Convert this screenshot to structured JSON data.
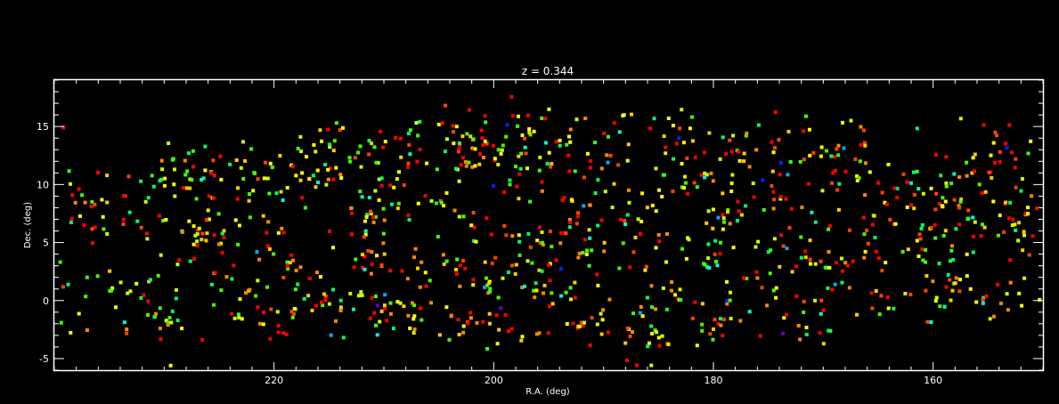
{
  "chart_data": {
    "type": "scatter",
    "title": "z = 0.344",
    "xlabel": "R.A. (deg)",
    "ylabel": "Dec. (deg)",
    "xlim": [
      240,
      150
    ],
    "ylim": [
      -6,
      19
    ],
    "x_inverted": true,
    "grid": false,
    "legend": "none",
    "background": "#000000",
    "axis_color": "#ffffff",
    "x_ticks": [
      220,
      200,
      180,
      160
    ],
    "x_tick_labels": [
      "220",
      "200",
      "180",
      "160"
    ],
    "y_ticks": [
      -5,
      0,
      5,
      10,
      15
    ],
    "y_tick_labels": [
      "-5",
      "0",
      "5",
      "10",
      "15"
    ],
    "x_minor_step": 2,
    "y_minor_step": 1,
    "marker": "square",
    "palette": [
      "#ff0000",
      "#ff4400",
      "#ff8800",
      "#ffcc00",
      "#ffff00",
      "#ccff00",
      "#44ff00",
      "#00ff66",
      "#00ffcc",
      "#00aaff",
      "#0022ff",
      "#6600cc"
    ],
    "color_weights": [
      20,
      10,
      12,
      8,
      14,
      9,
      14,
      8,
      3,
      1.2,
      0.7,
      0.4
    ],
    "clusters": [
      [
        238.0,
        1.5
      ],
      [
        236.5,
        7.8
      ],
      [
        233.5,
        2.0
      ],
      [
        230.5,
        -1.5
      ],
      [
        229.5,
        10.5
      ],
      [
        228.0,
        5.0
      ],
      [
        226.5,
        11.0
      ],
      [
        225.5,
        6.5
      ],
      [
        224.0,
        0.5
      ],
      [
        222.5,
        11.5
      ],
      [
        222.0,
        5.5
      ],
      [
        219.5,
        -2.0
      ],
      [
        218.5,
        3.0
      ],
      [
        217.0,
        9.5
      ],
      [
        216.5,
        12.5
      ],
      [
        215.0,
        0.5
      ],
      [
        213.0,
        13.0
      ],
      [
        212.5,
        6.5
      ],
      [
        210.5,
        -1.0
      ],
      [
        209.5,
        9.5
      ],
      [
        207.5,
        13.5
      ],
      [
        206.5,
        3.0
      ],
      [
        205.5,
        -1.5
      ],
      [
        204.0,
        8.0
      ],
      [
        203.0,
        14.5
      ],
      [
        202.0,
        2.5
      ],
      [
        200.5,
        5.5
      ],
      [
        199.0,
        -2.5
      ],
      [
        198.0,
        10.5
      ],
      [
        197.0,
        15.0
      ],
      [
        196.0,
        5.5
      ],
      [
        195.0,
        1.0
      ],
      [
        193.5,
        13.0
      ],
      [
        192.5,
        7.5
      ],
      [
        190.5,
        -2.0
      ],
      [
        190.0,
        3.5
      ],
      [
        189.0,
        15.0
      ],
      [
        187.5,
        9.5
      ],
      [
        186.0,
        6.0
      ],
      [
        185.0,
        0.5
      ],
      [
        184.0,
        14.5
      ],
      [
        182.0,
        11.0
      ],
      [
        181.0,
        4.5
      ],
      [
        180.0,
        -1.5
      ],
      [
        178.5,
        7.5
      ],
      [
        177.0,
        13.5
      ],
      [
        176.0,
        2.0
      ],
      [
        174.5,
        10.0
      ],
      [
        173.0,
        5.5
      ],
      [
        172.0,
        -1.5
      ],
      [
        170.5,
        14.0
      ],
      [
        170.0,
        8.5
      ],
      [
        168.5,
        2.5
      ],
      [
        167.0,
        12.0
      ],
      [
        165.5,
        6.0
      ],
      [
        164.5,
        0.5
      ],
      [
        162.5,
        10.0
      ],
      [
        161.5,
        4.5
      ],
      [
        160.0,
        8.5
      ],
      [
        158.5,
        1.5
      ],
      [
        157.0,
        11.5
      ],
      [
        156.0,
        6.5
      ],
      [
        154.5,
        0.5
      ],
      [
        153.5,
        12.5
      ],
      [
        152.0,
        7.5
      ],
      [
        151.0,
        2.5
      ],
      [
        195.5,
        3.5
      ],
      [
        186.5,
        -3.0
      ],
      [
        200.0,
        12.5
      ],
      [
        211.5,
        3.0
      ]
    ],
    "n_points": 1250,
    "n_clustered": 1025,
    "random_seed": 344
  }
}
